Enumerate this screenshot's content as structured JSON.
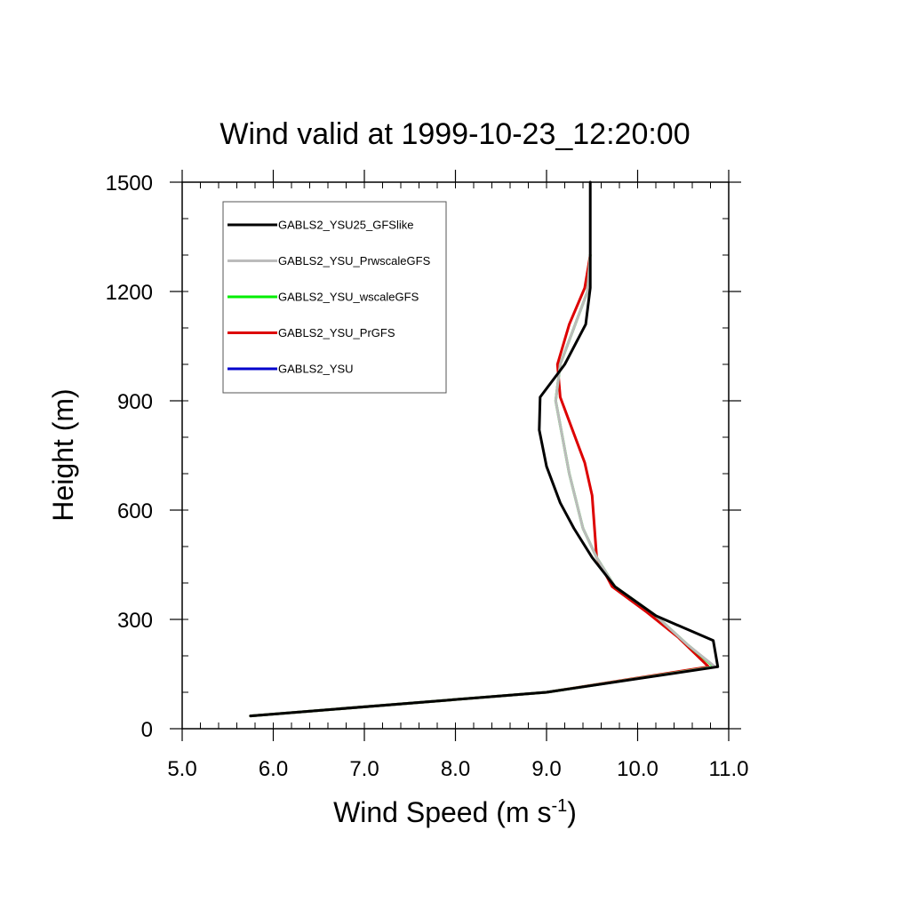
{
  "chart_data": {
    "type": "line",
    "title": "Wind valid at 1999-10-23_12:20:00",
    "xlabel": "Wind Speed (m s",
    "xlabel_superscript": "-1",
    "xlabel_suffix": ")",
    "ylabel": "Height (m)",
    "xlim": [
      5.0,
      11.0
    ],
    "ylim": [
      0,
      1500
    ],
    "xticks": [
      5.0,
      6.0,
      7.0,
      8.0,
      9.0,
      10.0,
      11.0
    ],
    "xtick_labels": [
      "5.0",
      "6.0",
      "7.0",
      "8.0",
      "9.0",
      "10.0",
      "11.0"
    ],
    "yticks": [
      0,
      300,
      600,
      900,
      1200,
      1500
    ],
    "ytick_labels": [
      "0",
      "300",
      "600",
      "900",
      "1200",
      "1500"
    ],
    "grid": false,
    "legend_position": "top-left",
    "series": [
      {
        "name": "GABLS2_YSU25_GFSlike",
        "color": "#000000",
        "points": [
          [
            5.75,
            35
          ],
          [
            9.0,
            100
          ],
          [
            10.88,
            170
          ],
          [
            10.83,
            242
          ],
          [
            10.2,
            310
          ],
          [
            9.75,
            390
          ],
          [
            9.5,
            470
          ],
          [
            9.3,
            550
          ],
          [
            9.15,
            620
          ],
          [
            9.0,
            720
          ],
          [
            8.92,
            820
          ],
          [
            8.93,
            910
          ],
          [
            9.2,
            1000
          ],
          [
            9.43,
            1110
          ],
          [
            9.48,
            1210
          ],
          [
            9.48,
            1300
          ],
          [
            9.48,
            1400
          ],
          [
            9.48,
            1500
          ]
        ]
      },
      {
        "name": "GABLS2_YSU_PrwscaleGFS",
        "color": "#bbbbbb",
        "points": [
          [
            5.75,
            35
          ],
          [
            9.0,
            100
          ],
          [
            10.85,
            170
          ],
          [
            10.55,
            230
          ],
          [
            10.2,
            310
          ],
          [
            9.75,
            390
          ],
          [
            9.55,
            470
          ],
          [
            9.4,
            550
          ],
          [
            9.25,
            700
          ],
          [
            9.1,
            900
          ],
          [
            9.15,
            1000
          ],
          [
            9.3,
            1100
          ],
          [
            9.45,
            1200
          ],
          [
            9.48,
            1300
          ]
        ]
      },
      {
        "name": "GABLS2_YSU_wscaleGFS",
        "color": "#00ee00",
        "points": [
          [
            5.75,
            35
          ],
          [
            9.0,
            100
          ],
          [
            10.84,
            170
          ],
          [
            10.55,
            230
          ],
          [
            10.2,
            310
          ],
          [
            9.75,
            390
          ],
          [
            9.55,
            470
          ],
          [
            9.4,
            550
          ],
          [
            9.25,
            700
          ],
          [
            9.1,
            900
          ],
          [
            9.15,
            1000
          ],
          [
            9.3,
            1100
          ],
          [
            9.45,
            1200
          ],
          [
            9.48,
            1300
          ]
        ]
      },
      {
        "name": "GABLS2_YSU_PrGFS",
        "color": "#dd0000",
        "points": [
          [
            5.75,
            35
          ],
          [
            9.0,
            100
          ],
          [
            10.78,
            170
          ],
          [
            10.45,
            250
          ],
          [
            10.1,
            320
          ],
          [
            9.72,
            390
          ],
          [
            9.55,
            470
          ],
          [
            9.5,
            640
          ],
          [
            9.42,
            730
          ],
          [
            9.15,
            910
          ],
          [
            9.12,
            1000
          ],
          [
            9.25,
            1110
          ],
          [
            9.42,
            1210
          ],
          [
            9.48,
            1300
          ]
        ]
      },
      {
        "name": "GABLS2_YSU",
        "color": "#0000cc",
        "points": []
      }
    ]
  }
}
